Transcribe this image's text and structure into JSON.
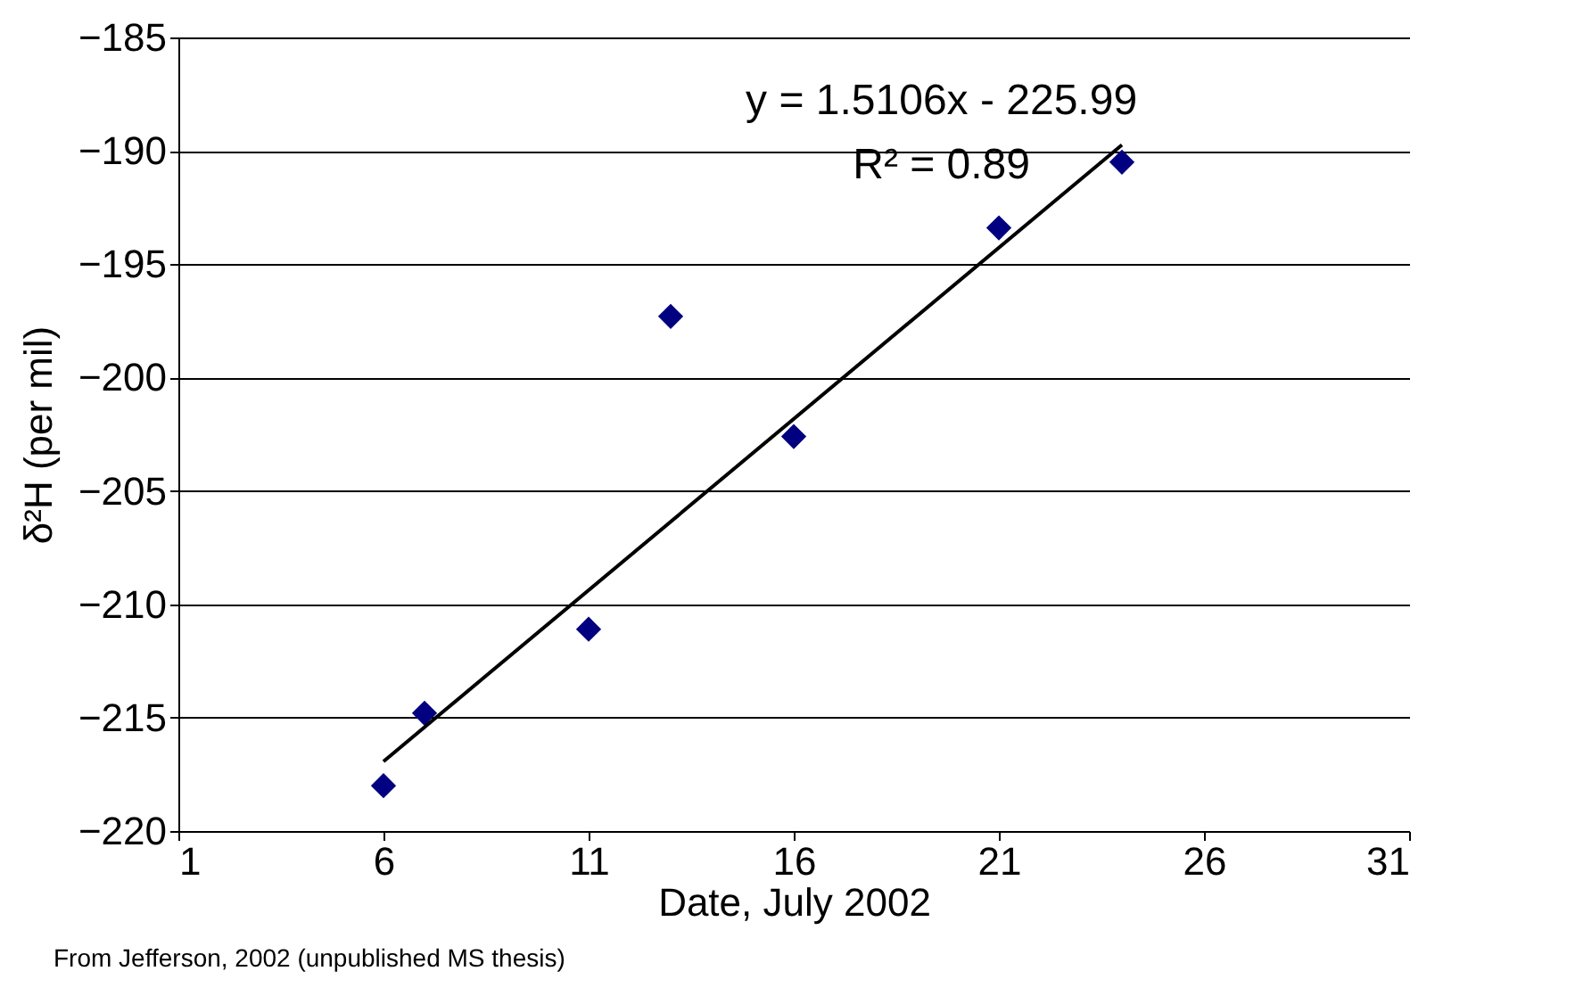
{
  "chart_data": {
    "type": "scatter",
    "xlabel": "Date, July 2002",
    "ylabel": "δ²H (per mil)",
    "xlim": [
      1,
      31
    ],
    "xticks": [
      1,
      6,
      11,
      16,
      21,
      26,
      31
    ],
    "ylim": [
      -220,
      -185
    ],
    "yticks": [
      -220,
      -215,
      -210,
      -205,
      -200,
      -195,
      -190,
      -185
    ],
    "grid": "y",
    "marker": "diamond",
    "series": [
      {
        "color": "#000080",
        "x": [
          6,
          7,
          11,
          13,
          16,
          21,
          24
        ],
        "values": [
          -218.0,
          -214.8,
          -211.1,
          -197.3,
          -202.6,
          -193.4,
          -190.5
        ]
      },
      {
        "type": "line",
        "marker": "none",
        "color": "#000000",
        "x": [
          6,
          24
        ],
        "values": [
          -216.93,
          -189.74
        ]
      }
    ],
    "annotations": [
      "y = 1.5106x - 225.99",
      "R² = 0.89",
      "From Jefferson, 2002 (unpublished MS thesis)"
    ]
  }
}
